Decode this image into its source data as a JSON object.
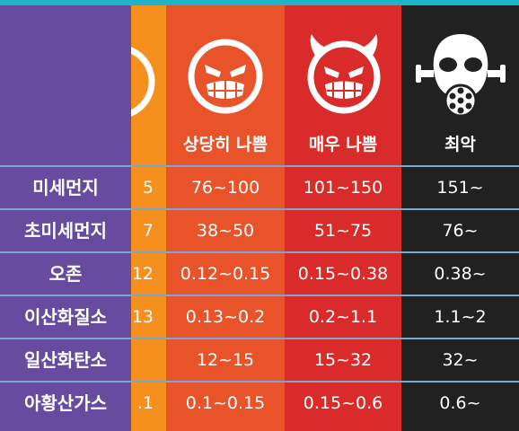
{
  "headers": {
    "very_bad": "상당히 나쁨",
    "extremely_bad": "매우 나쁨",
    "worst": "최악"
  },
  "rows": [
    {
      "label": "미세먼지",
      "bad": "5",
      "very_bad": "76~100",
      "extremely_bad": "101~150",
      "worst": "151~"
    },
    {
      "label": "초미세먼지",
      "bad": "7",
      "very_bad": "38~50",
      "extremely_bad": "51~75",
      "worst": "76~"
    },
    {
      "label": "오존",
      "bad": "12",
      "very_bad": "0.12~0.15",
      "extremely_bad": "0.15~0.38",
      "worst": "0.38~"
    },
    {
      "label": "이산화질소",
      "bad": "13",
      "very_bad": "0.13~0.2",
      "extremely_bad": "0.2~1.1",
      "worst": "1.1~2"
    },
    {
      "label": "일산화탄소",
      "bad": "",
      "very_bad": "12~15",
      "extremely_bad": "15~32",
      "worst": "32~"
    },
    {
      "label": "아황산가스",
      "bad": ".1",
      "very_bad": "0.1~0.15",
      "extremely_bad": "0.15~0.6",
      "worst": "0.6~"
    }
  ],
  "icons": {
    "bad": "face-partial-icon",
    "very_bad": "evil-grin-face-icon",
    "extremely_bad": "devil-face-icon",
    "worst": "gas-mask-icon"
  },
  "colors": {
    "label_column": "#664b9e",
    "bad": "#f5901f",
    "very_bad": "#e8532a",
    "extremely_bad": "#d82b2a",
    "worst": "#212121",
    "separator": "#7ba6d3",
    "frame": "#1fb3c8"
  }
}
